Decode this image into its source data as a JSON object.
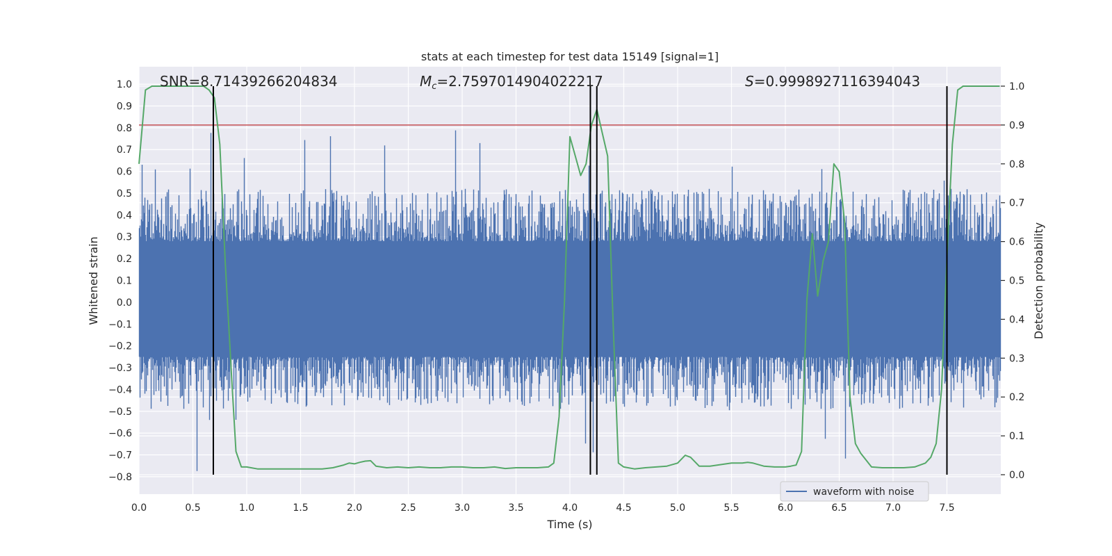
{
  "chart_data": {
    "type": "line",
    "title": "stats at each timestep for test data 15149 [signal=1]",
    "xlabel": "Time (s)",
    "ylabel_left": "Whitened strain",
    "ylabel_right": "Detection probability",
    "xlim": [
      0.0,
      8.0
    ],
    "ylim_left": [
      -0.88,
      1.08
    ],
    "ylim_right": [
      -0.05,
      1.05
    ],
    "x_ticks": [
      "0.0",
      "0.5",
      "1.0",
      "1.5",
      "2.0",
      "2.5",
      "3.0",
      "3.5",
      "4.0",
      "4.5",
      "5.0",
      "5.5",
      "6.0",
      "6.5",
      "7.0",
      "7.5"
    ],
    "y_ticks_left": [
      "-0.8",
      "-0.7",
      "-0.6",
      "-0.5",
      "-0.4",
      "-0.3",
      "-0.2",
      "-0.1",
      "0.0",
      "0.1",
      "0.2",
      "0.3",
      "0.4",
      "0.5",
      "0.6",
      "0.7",
      "0.8",
      "0.9",
      "1.0"
    ],
    "y_ticks_right": [
      "0.0",
      "0.1",
      "0.2",
      "0.3",
      "0.4",
      "0.5",
      "0.6",
      "0.7",
      "0.8",
      "0.9",
      "1.0"
    ],
    "grid": true,
    "legend_position": "lower-right",
    "annotations": {
      "snr": "SNR=8.71439266204834",
      "mc": "=2.7597014904022217",
      "mc_symbol": "M",
      "mc_subscript": "c",
      "s": "=0.9998927116394043",
      "s_symbol": "S"
    },
    "threshold_right": 0.9,
    "vertical_lines_x": [
      0.69,
      4.19,
      4.25,
      7.5
    ],
    "series": [
      {
        "name": "waveform with noise",
        "color": "#4c72b0",
        "description_axis": "left",
        "envelope": {
          "core_upper": 0.28,
          "core_lower": -0.25,
          "typical_upper": 0.43,
          "typical_lower": -0.4,
          "peak_upper": 0.8,
          "peak_lower": -0.79
        }
      },
      {
        "name": "",
        "color": "#55a868",
        "axis": "right",
        "x": [
          0.0,
          0.06,
          0.12,
          0.2,
          0.3,
          0.4,
          0.5,
          0.6,
          0.65,
          0.7,
          0.75,
          0.8,
          0.86,
          0.9,
          0.95,
          1.0,
          1.1,
          1.2,
          1.3,
          1.4,
          1.5,
          1.6,
          1.7,
          1.8,
          1.9,
          1.95,
          2.0,
          2.05,
          2.1,
          2.15,
          2.2,
          2.3,
          2.4,
          2.5,
          2.6,
          2.7,
          2.8,
          2.9,
          3.0,
          3.1,
          3.2,
          3.3,
          3.4,
          3.5,
          3.6,
          3.7,
          3.8,
          3.85,
          3.9,
          3.95,
          4.0,
          4.05,
          4.1,
          4.15,
          4.2,
          4.25,
          4.3,
          4.35,
          4.4,
          4.45,
          4.5,
          4.6,
          4.7,
          4.8,
          4.9,
          5.0,
          5.07,
          5.12,
          5.2,
          5.3,
          5.4,
          5.5,
          5.6,
          5.65,
          5.7,
          5.8,
          5.9,
          6.0,
          6.05,
          6.1,
          6.15,
          6.2,
          6.25,
          6.3,
          6.35,
          6.4,
          6.45,
          6.5,
          6.55,
          6.6,
          6.65,
          6.7,
          6.8,
          6.9,
          7.0,
          7.1,
          7.2,
          7.3,
          7.35,
          7.4,
          7.45,
          7.5,
          7.55,
          7.6,
          7.65,
          7.7,
          7.8,
          7.9,
          7.99
        ],
        "y": [
          0.8,
          0.99,
          1.0,
          1.0,
          1.0,
          1.0,
          1.0,
          1.0,
          0.99,
          0.97,
          0.85,
          0.55,
          0.25,
          0.06,
          0.02,
          0.02,
          0.015,
          0.015,
          0.015,
          0.015,
          0.015,
          0.015,
          0.015,
          0.018,
          0.025,
          0.03,
          0.028,
          0.032,
          0.035,
          0.036,
          0.022,
          0.018,
          0.02,
          0.018,
          0.02,
          0.018,
          0.018,
          0.02,
          0.02,
          0.018,
          0.018,
          0.02,
          0.016,
          0.018,
          0.018,
          0.018,
          0.02,
          0.03,
          0.15,
          0.45,
          0.87,
          0.82,
          0.77,
          0.8,
          0.9,
          0.94,
          0.88,
          0.82,
          0.4,
          0.03,
          0.02,
          0.015,
          0.018,
          0.02,
          0.022,
          0.03,
          0.05,
          0.045,
          0.022,
          0.022,
          0.026,
          0.03,
          0.03,
          0.032,
          0.03,
          0.022,
          0.02,
          0.02,
          0.022,
          0.025,
          0.06,
          0.45,
          0.62,
          0.46,
          0.55,
          0.6,
          0.8,
          0.78,
          0.65,
          0.2,
          0.08,
          0.055,
          0.02,
          0.018,
          0.018,
          0.018,
          0.02,
          0.03,
          0.045,
          0.08,
          0.22,
          0.56,
          0.85,
          0.99,
          1.0,
          1.0,
          1.0,
          1.0,
          1.0
        ]
      }
    ]
  }
}
